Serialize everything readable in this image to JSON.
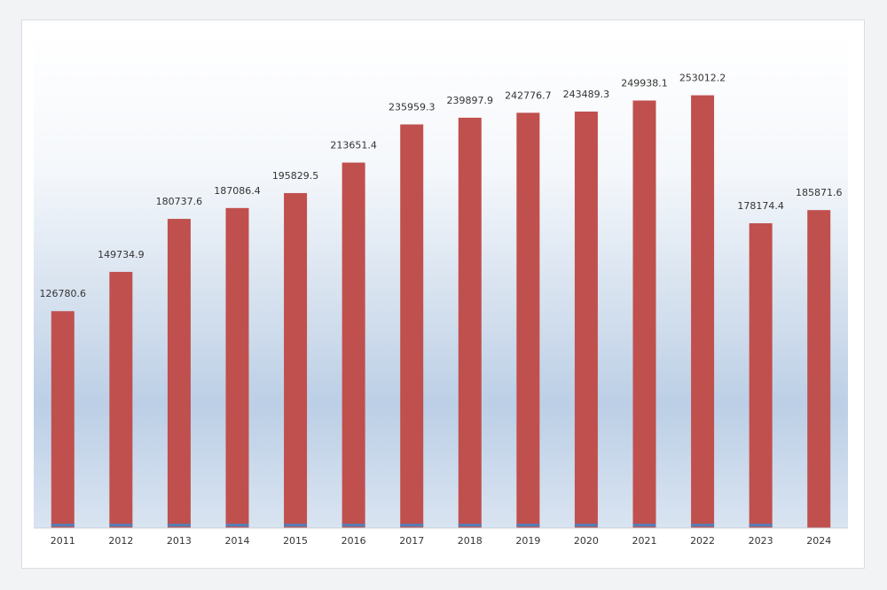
{
  "chart_data": {
    "type": "bar",
    "title": "",
    "xlabel": "",
    "ylabel": "",
    "categories": [
      "2011",
      "2012",
      "2013",
      "2014",
      "2015",
      "2016",
      "2017",
      "2018",
      "2019",
      "2020",
      "2021",
      "2022",
      "2023",
      "2024"
    ],
    "series": [
      {
        "values": [
          126780.6,
          149734.9,
          180737.6,
          187086.4,
          195829.5,
          213651.4,
          235959.3,
          239897.9,
          242776.7,
          243489.3,
          249938.1,
          253012.2,
          178174.4,
          185871.6
        ],
        "color": "#c0504d"
      },
      {
        "values": [
          1400,
          1400,
          1400,
          1400,
          1400,
          1400,
          1400,
          1400,
          1400,
          1400,
          1400,
          1400,
          1400,
          0
        ],
        "color": "#4f81bd"
      }
    ],
    "data_labels": [
      "126780.6",
      "149734.9",
      "180737.6",
      "187086.4",
      "195829.5",
      "213651.4",
      "235959.3",
      "239897.9",
      "242776.7",
      "243489.3",
      "249938.1",
      "253012.2",
      "178174.4",
      "185871.6"
    ],
    "ylim": [
      0,
      288000
    ],
    "grid": false,
    "legend": "none",
    "background": "gradient white to light blue"
  }
}
